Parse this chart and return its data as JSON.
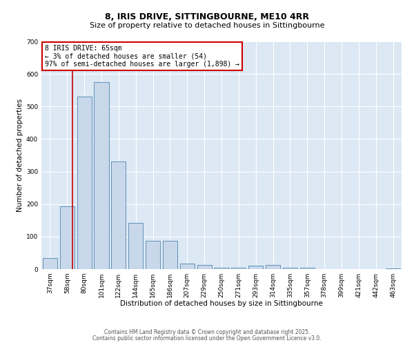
{
  "title1": "8, IRIS DRIVE, SITTINGBOURNE, ME10 4RR",
  "title2": "Size of property relative to detached houses in Sittingbourne",
  "xlabel": "Distribution of detached houses by size in Sittingbourne",
  "ylabel": "Number of detached properties",
  "bar_labels": [
    "37sqm",
    "58sqm",
    "80sqm",
    "101sqm",
    "122sqm",
    "144sqm",
    "165sqm",
    "186sqm",
    "207sqm",
    "229sqm",
    "250sqm",
    "271sqm",
    "293sqm",
    "314sqm",
    "335sqm",
    "357sqm",
    "378sqm",
    "399sqm",
    "421sqm",
    "442sqm",
    "463sqm"
  ],
  "bar_values": [
    35,
    192,
    530,
    575,
    330,
    143,
    88,
    88,
    17,
    13,
    5,
    5,
    10,
    13,
    5,
    5,
    0,
    0,
    0,
    0,
    3
  ],
  "bar_color": "#c8d8ea",
  "bar_edge_color": "#6090b8",
  "bar_width": 0.85,
  "ylim": [
    0,
    700
  ],
  "yticks": [
    0,
    100,
    200,
    300,
    400,
    500,
    600,
    700
  ],
  "annotation_title": "8 IRIS DRIVE: 65sqm",
  "annotation_line1": "← 3% of detached houses are smaller (54)",
  "annotation_line2": "97% of semi-detached houses are larger (1,898) →",
  "annotation_box_facecolor": "#ffffff",
  "annotation_box_edgecolor": "#cc0000",
  "red_line_color": "#cc0000",
  "footer1": "Contains HM Land Registry data © Crown copyright and database right 2025.",
  "footer2": "Contains public sector information licensed under the Open Government Licence v3.0.",
  "background_color": "#dce8f4",
  "grid_color": "#ffffff",
  "fig_bg_color": "#ffffff",
  "title1_fontsize": 9,
  "title2_fontsize": 8,
  "axis_label_fontsize": 7.5,
  "tick_fontsize": 6.5,
  "annotation_fontsize": 7,
  "footer_fontsize": 5.5
}
